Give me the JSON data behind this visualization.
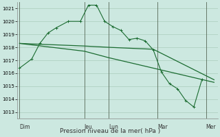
{
  "background_color": "#cce8e0",
  "grid_color": "#aaccbb",
  "line_color": "#1a6b30",
  "title": "Pression niveau de la mer( hPa )",
  "ylim": [
    1012.5,
    1021.5
  ],
  "yticks": [
    1013,
    1014,
    1015,
    1016,
    1017,
    1018,
    1019,
    1020,
    1021
  ],
  "day_labels": [
    "Dim",
    "Jeu",
    "Lun",
    "Mar",
    "Mer"
  ],
  "day_positions": [
    0,
    8,
    11,
    17,
    23
  ],
  "xlim": [
    -0.3,
    24.5
  ],
  "series1_x": [
    0,
    1.5,
    2.5,
    3.5,
    4.5,
    6,
    7.5,
    8.5,
    9.5,
    10.5,
    11.5,
    12.5,
    13.5,
    14.5,
    15.5,
    16.5,
    17.5,
    18.5,
    19.5,
    20.5,
    21.5,
    22.5
  ],
  "series1_y": [
    1016.4,
    1017.1,
    1018.3,
    1019.1,
    1019.5,
    1020.0,
    1020.0,
    1021.25,
    1021.25,
    1020.0,
    1019.6,
    1019.3,
    1018.6,
    1018.7,
    1018.5,
    1017.8,
    1016.1,
    1015.2,
    1014.8,
    1013.9,
    1013.4,
    1015.5
  ],
  "series2_x": [
    0,
    8,
    11,
    16.5,
    24
  ],
  "series2_y": [
    1018.3,
    1018.1,
    1018.0,
    1017.85,
    1015.5
  ],
  "series3_x": [
    0,
    8,
    11,
    24
  ],
  "series3_y": [
    1018.3,
    1017.7,
    1017.2,
    1015.3
  ]
}
